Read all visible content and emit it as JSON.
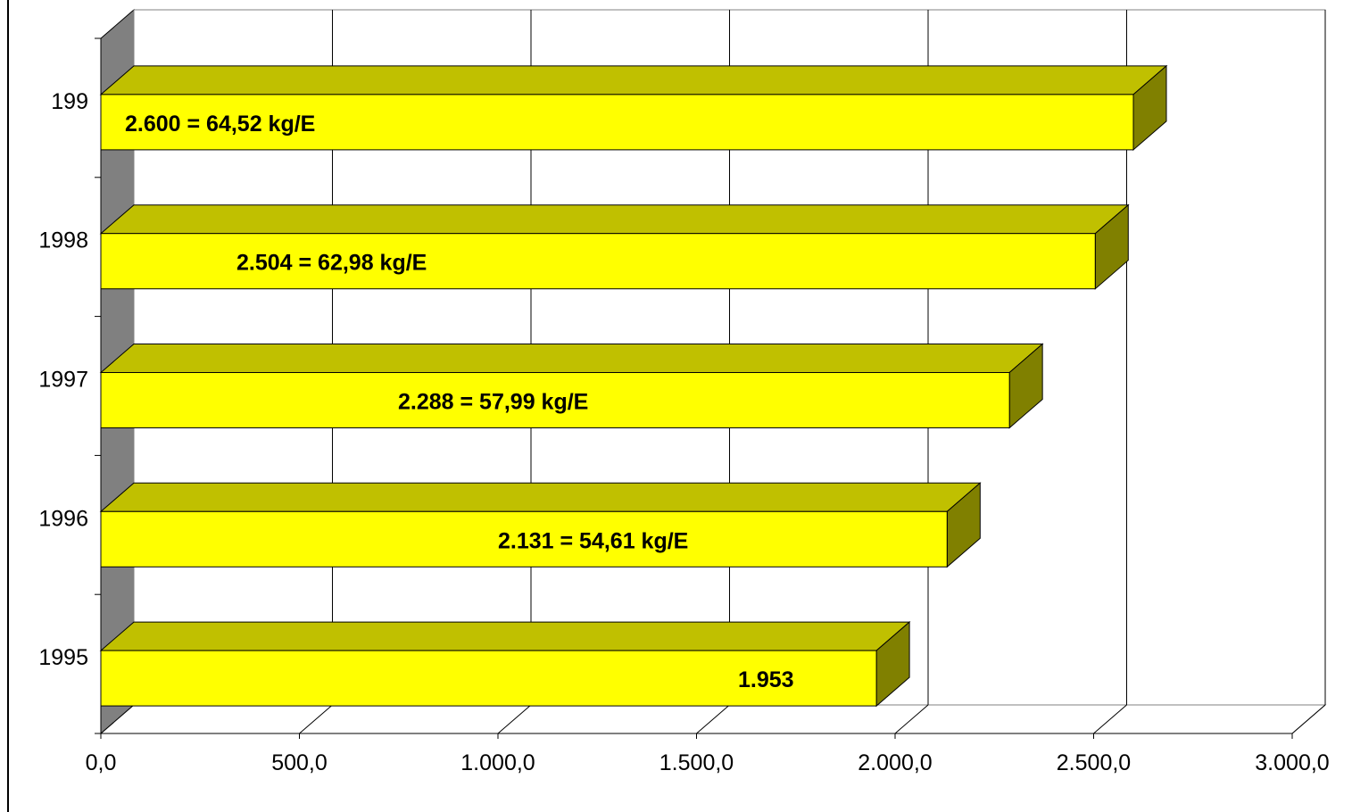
{
  "chart_data": {
    "type": "bar",
    "orientation": "horizontal",
    "style": "3d",
    "title": "",
    "xlabel": "",
    "ylabel": "",
    "categories": [
      "199",
      "1998",
      "1997",
      "1996",
      "1995"
    ],
    "values": [
      2600,
      2504,
      2288,
      2131,
      1953
    ],
    "data_labels": [
      "2.600  =  64,52  kg/E",
      "2.504 = 62,98  kg/E",
      "2.288 = 57,99 kg/E",
      "2.131  =  54,61  kg/E",
      "1.953"
    ],
    "xlim": [
      0,
      3000
    ],
    "x_ticks": [
      0,
      500,
      1000,
      1500,
      2000,
      2500,
      3000
    ],
    "x_tick_labels": [
      "0,0",
      "500,0",
      "1.000,0",
      "1.500,0",
      "2.000,0",
      "2.500,0",
      "3.000,0"
    ],
    "grid": true,
    "legend": false,
    "colors": {
      "bar_front": "#ffff00",
      "bar_top": "#c0c000",
      "bar_side": "#808000",
      "wall_side": "#808080",
      "gridline": "#000000"
    }
  }
}
